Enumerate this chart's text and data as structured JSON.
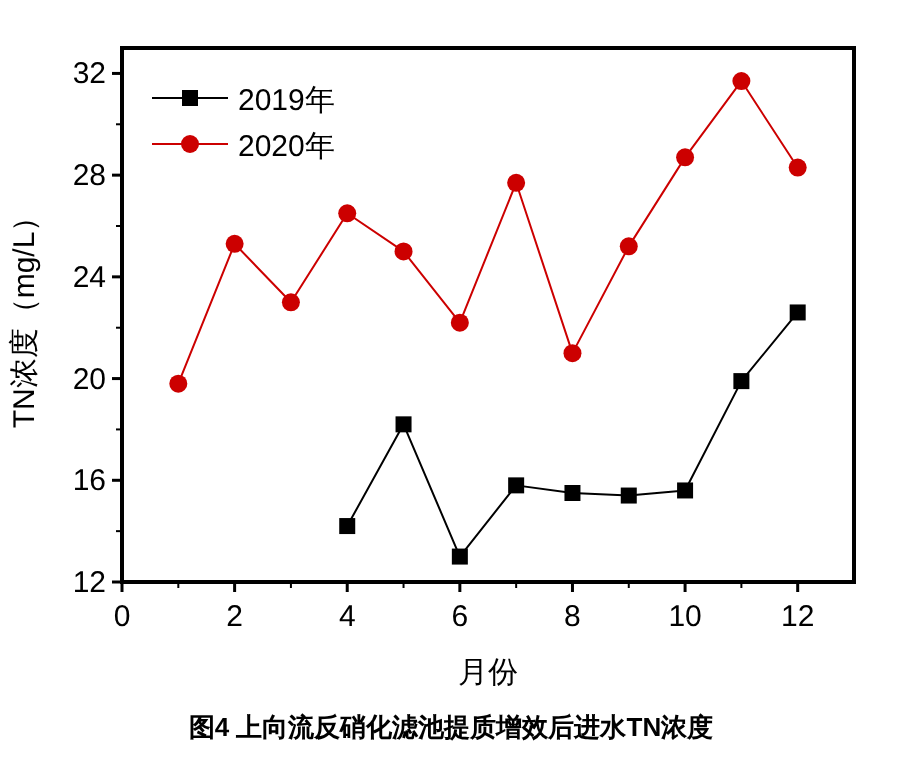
{
  "chart_data": {
    "type": "line",
    "xlabel": "月份",
    "ylabel": "TN浓度（mg/L）",
    "title": "图4  上向流反硝化滤池提质增效后进水TN浓度",
    "x": [
      1,
      2,
      3,
      4,
      5,
      6,
      7,
      8,
      9,
      10,
      11,
      12
    ],
    "series": [
      {
        "name": "2019年",
        "color": "#000000",
        "marker": "square",
        "values": [
          null,
          null,
          null,
          14.2,
          18.2,
          13.0,
          15.8,
          15.5,
          15.4,
          15.6,
          19.9,
          22.6
        ]
      },
      {
        "name": "2020年",
        "color": "#cc0000",
        "marker": "circle",
        "values": [
          19.8,
          25.3,
          23.0,
          26.5,
          25.0,
          22.2,
          27.7,
          21.0,
          25.2,
          28.7,
          31.7,
          28.3
        ]
      }
    ],
    "xlim": [
      0,
      13
    ],
    "xticks": [
      0,
      2,
      4,
      6,
      8,
      10,
      12
    ],
    "ylim": [
      12,
      33
    ],
    "yticks": [
      12,
      16,
      20,
      24,
      28,
      32
    ],
    "legend": "top left",
    "grid": false,
    "line_style": "solid"
  }
}
